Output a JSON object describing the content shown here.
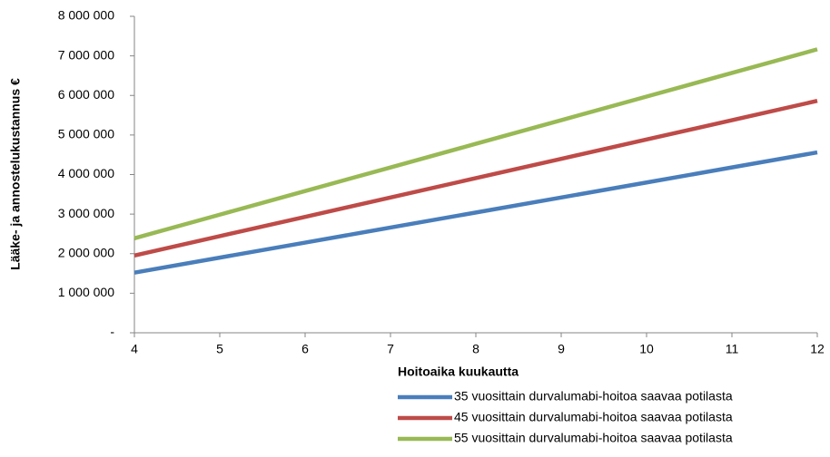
{
  "chart_data": {
    "type": "line",
    "y_label": "Lääke- ja annostelukustannus €",
    "x_label": "Hoitoaika kuukautta",
    "x": [
      4,
      5,
      6,
      7,
      8,
      9,
      10,
      11,
      12
    ],
    "series": [
      {
        "name": "35 vuosittain durvalumabi-hoitoa saavaa potilasta",
        "color": "#4a7ebb",
        "values": [
          1520000,
          1900000,
          2280000,
          2660000,
          3040000,
          3420000,
          3800000,
          4180000,
          4560000
        ]
      },
      {
        "name": "45 vuosittain durvalumabi-hoitoa saavaa potilasta",
        "color": "#be4b48",
        "values": [
          1954000,
          2443000,
          2931000,
          3420000,
          3909000,
          4397000,
          4886000,
          5374000,
          5863000
        ]
      },
      {
        "name": "55 vuosittain durvalumabi-hoitoa saavaa potilasta",
        "color": "#98b954",
        "values": [
          2389000,
          2986000,
          3583000,
          4180000,
          4777000,
          5374000,
          5971000,
          6569000,
          7166000
        ]
      }
    ],
    "xlim": [
      4,
      12
    ],
    "xticks": [
      4,
      5,
      6,
      7,
      8,
      9,
      10,
      11,
      12
    ],
    "ylim": [
      0,
      8000000
    ],
    "yticks": [
      {
        "value": 0,
        "label": "-"
      },
      {
        "value": 1000000,
        "label": "1 000 000"
      },
      {
        "value": 2000000,
        "label": "2 000 000"
      },
      {
        "value": 3000000,
        "label": "3 000 000"
      },
      {
        "value": 4000000,
        "label": "4 000 000"
      },
      {
        "value": 5000000,
        "label": "5 000 000"
      },
      {
        "value": 6000000,
        "label": "6 000 000"
      },
      {
        "value": 7000000,
        "label": "7 000 000"
      },
      {
        "value": 8000000,
        "label": "8 000 000"
      }
    ],
    "grid": false,
    "legend": "bottom-right"
  }
}
